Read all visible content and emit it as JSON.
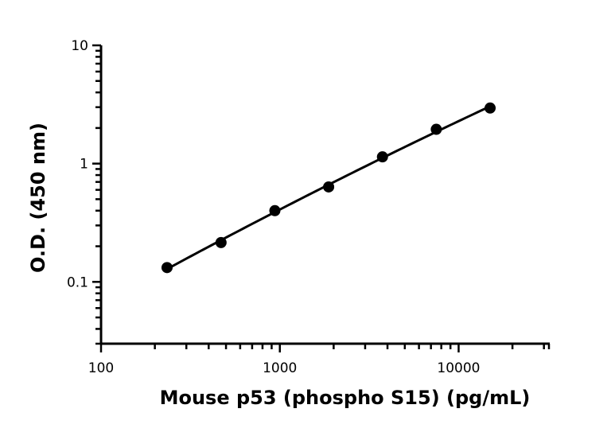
{
  "chart_data": {
    "type": "scatter",
    "title": "",
    "xlabel": "Mouse p53 (phospho S15) (pg/mL)",
    "ylabel": "O.D. (450 nm)",
    "xscale": "log",
    "yscale": "log",
    "xlim": [
      100,
      32000
    ],
    "ylim": [
      0.03,
      10
    ],
    "x_ticks": [
      {
        "value": 100,
        "label": "100"
      },
      {
        "value": 1000,
        "label": "1000"
      },
      {
        "value": 10000,
        "label": "10000"
      }
    ],
    "y_ticks": [
      {
        "value": 0.1,
        "label": "0.1"
      },
      {
        "value": 1,
        "label": "1"
      },
      {
        "value": 10,
        "label": "10"
      }
    ],
    "grid": false,
    "legend": "none",
    "series": [
      {
        "x": [
          234,
          469,
          938,
          1875,
          3750,
          7500,
          15000
        ],
        "y": [
          0.132,
          0.215,
          0.4,
          0.635,
          1.14,
          1.95,
          2.95
        ],
        "marker": "circle",
        "color": "#000000",
        "fit_line": true
      }
    ]
  }
}
